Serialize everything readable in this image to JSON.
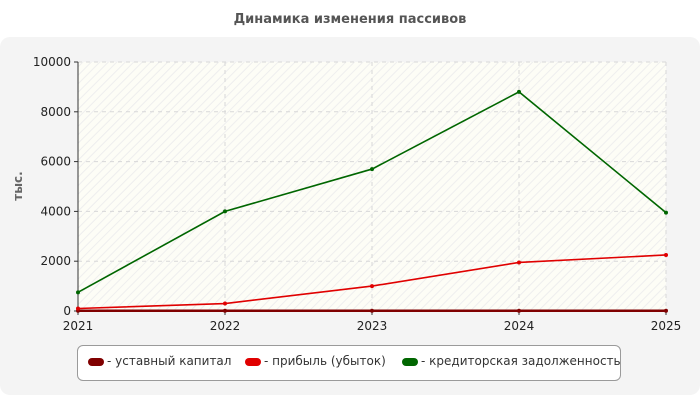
{
  "chart_data": {
    "type": "line",
    "title": "Динамика изменения пассивов",
    "ylabel": "тыс.",
    "xlabel": "",
    "x": [
      2021,
      2022,
      2023,
      2024,
      2025
    ],
    "x_tick_labels": [
      "2021",
      "2022",
      "2023",
      "2024",
      "2025"
    ],
    "ylim": [
      0,
      10000
    ],
    "y_ticks": [
      0,
      2000,
      4000,
      6000,
      8000,
      10000
    ],
    "y_tick_labels": [
      "0",
      "2000",
      "4000",
      "6000",
      "8000",
      "10000"
    ],
    "grid": true,
    "legend_position": "bottom",
    "series": [
      {
        "name": "- уставный капитал",
        "color": "#800000",
        "values": [
          10,
          10,
          10,
          10,
          10
        ]
      },
      {
        "name": "- прибыль (убыток)",
        "color": "#e00000",
        "values": [
          100,
          300,
          1000,
          1950,
          2250
        ]
      },
      {
        "name": "- кредиторская задолженность",
        "color": "#006600",
        "values": [
          750,
          4000,
          5700,
          8800,
          3950
        ]
      }
    ]
  }
}
